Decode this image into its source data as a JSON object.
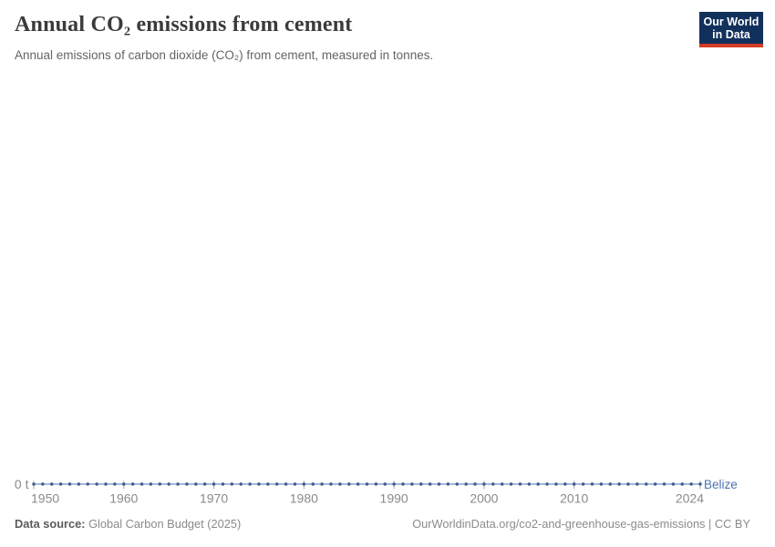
{
  "header": {
    "title": "Annual CO₂ emissions from cement",
    "subtitle": "Annual emissions of carbon dioxide (CO₂) from cement, measured in tonnes.",
    "logo": {
      "line1": "Our World",
      "line2": "in Data",
      "bg_color": "#12305c",
      "bar_color": "#d33d26",
      "text_color": "#ffffff"
    }
  },
  "chart_data": {
    "type": "line",
    "title": "Annual CO₂ emissions from cement",
    "subtitle": "Annual emissions of carbon dioxide (CO₂) from cement, measured in tonnes.",
    "entity": "Belize",
    "unit": "t",
    "x_range": [
      1950,
      2024
    ],
    "x_step": 1,
    "constant_value": 0,
    "series": [
      {
        "name": "Belize",
        "values_note": "all years 1950–2024 equal 0 tonnes",
        "constant_value": 0
      }
    ],
    "x_ticks": [
      1950,
      1960,
      1970,
      1980,
      1990,
      2000,
      2010,
      2024
    ],
    "y_axis_zero_label": "0 t",
    "ylim": [
      0,
      0
    ],
    "grid": false,
    "legend_position": "end-of-line-label",
    "line_color": "#8aa2cc",
    "dot_color": "#3b5a8d",
    "entity_label_color": "#4d73af",
    "axis_text_color": "#8a8a8a",
    "tick_color": "#a5a5a5"
  },
  "footer": {
    "source_label": "Data source:",
    "source_value": "Global Carbon Budget (2025)",
    "link_text": "OurWorldinData.org/co2-and-greenhouse-gas-emissions | CC BY"
  }
}
